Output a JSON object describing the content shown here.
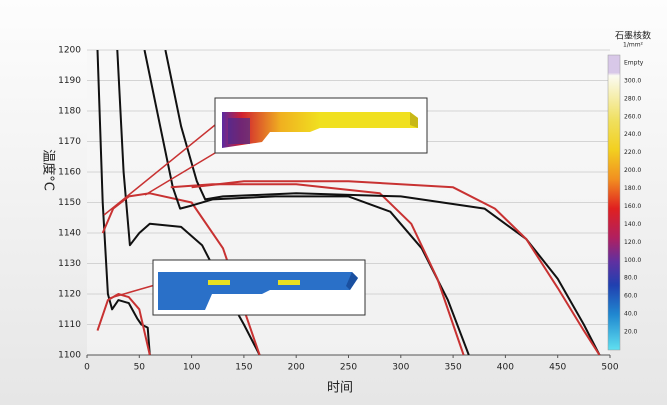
{
  "chart_data": {
    "type": "line",
    "xlabel": "时间",
    "ylabel": "温度°C",
    "xlim": [
      0,
      500
    ],
    "ylim": [
      1100,
      1200
    ],
    "xticks": [
      0,
      50,
      100,
      150,
      200,
      250,
      300,
      350,
      400,
      450,
      500
    ],
    "yticks": [
      1100,
      1110,
      1120,
      1130,
      1140,
      1150,
      1160,
      1170,
      1180,
      1190,
      1200
    ],
    "grid": true,
    "series": [
      {
        "color": "#111111",
        "x": [
          10,
          15,
          20,
          24,
          30,
          40,
          48,
          52,
          58,
          60
        ],
        "values": [
          1200,
          1150,
          1120,
          1115,
          1118,
          1117,
          1112,
          1110,
          1109,
          1100
        ]
      },
      {
        "color": "#c83232",
        "x": [
          10,
          20,
          30,
          40,
          50,
          60
        ],
        "values": [
          1108,
          1118,
          1120,
          1119,
          1115,
          1100
        ]
      },
      {
        "color": "#111111",
        "x": [
          29,
          35,
          41,
          50,
          60,
          90,
          110,
          137,
          150,
          165
        ],
        "values": [
          1200,
          1160,
          1136,
          1140,
          1143,
          1142,
          1136,
          1118,
          1110,
          1100
        ]
      },
      {
        "color": "#c83232",
        "x": [
          15,
          25,
          40,
          60,
          100,
          130,
          150,
          165
        ],
        "values": [
          1140,
          1148,
          1152,
          1153,
          1150,
          1135,
          1115,
          1100
        ]
      },
      {
        "color": "#111111",
        "x": [
          55,
          70,
          82,
          89,
          100,
          120,
          180,
          250,
          290,
          320,
          345,
          365
        ],
        "values": [
          1200,
          1175,
          1155,
          1148,
          1149,
          1151,
          1152,
          1152,
          1147,
          1135,
          1118,
          1100
        ]
      },
      {
        "color": "#c83232",
        "x": [
          80,
          120,
          200,
          280,
          310,
          335,
          350,
          360
        ],
        "values": [
          1155,
          1156,
          1156,
          1153,
          1143,
          1125,
          1110,
          1100
        ]
      },
      {
        "color": "#111111",
        "x": [
          75,
          90,
          105,
          113,
          130,
          200,
          300,
          380,
          420,
          450,
          475,
          490
        ],
        "values": [
          1200,
          1175,
          1157,
          1151,
          1152,
          1153,
          1152,
          1148,
          1138,
          1125,
          1110,
          1100
        ]
      },
      {
        "color": "#c83232",
        "x": [
          100,
          150,
          250,
          350,
          390,
          420,
          450,
          475,
          490
        ],
        "values": [
          1155,
          1157,
          1157,
          1155,
          1148,
          1138,
          1122,
          1108,
          1100
        ]
      }
    ],
    "colorbar": {
      "title": "石墨核数",
      "unit": "1/mm²",
      "labels": [
        "Empty",
        "300.0",
        "280.0",
        "260.0",
        "240.0",
        "220.0",
        "200.0",
        "180.0",
        "160.0",
        "140.0",
        "120.0",
        "100.0",
        "80.0",
        "60.0",
        "40.0",
        "20.0"
      ]
    }
  }
}
